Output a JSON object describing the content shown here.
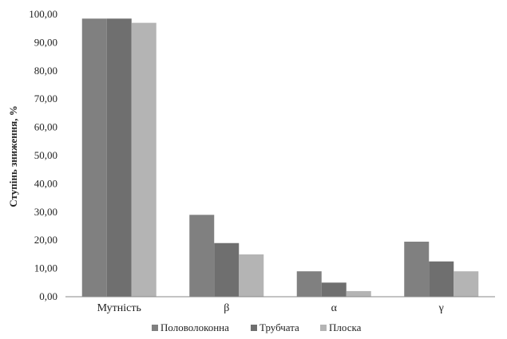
{
  "chart_data": {
    "type": "bar",
    "categories": [
      "Мутність",
      "β",
      "α",
      "γ"
    ],
    "series": [
      {
        "name": "Половолоконна",
        "values": [
          98.5,
          29.0,
          9.0,
          19.5
        ],
        "color": "#808080"
      },
      {
        "name": "Трубчата",
        "values": [
          98.5,
          19.0,
          5.0,
          12.5
        ],
        "color": "#6f6f6f"
      },
      {
        "name": "Плоска",
        "values": [
          97.0,
          15.0,
          2.0,
          9.0
        ],
        "color": "#b4b4b4"
      }
    ],
    "title": "",
    "xlabel": "",
    "ylabel": "Ступінь зниження, %",
    "ylim": [
      0,
      100
    ],
    "ytick_labels": [
      "0,00",
      "10,00",
      "20,00",
      "30,00",
      "40,00",
      "50,00",
      "60,00",
      "70,00",
      "80,00",
      "90,00",
      "100,00"
    ],
    "grid": false,
    "legend_position": "bottom"
  }
}
